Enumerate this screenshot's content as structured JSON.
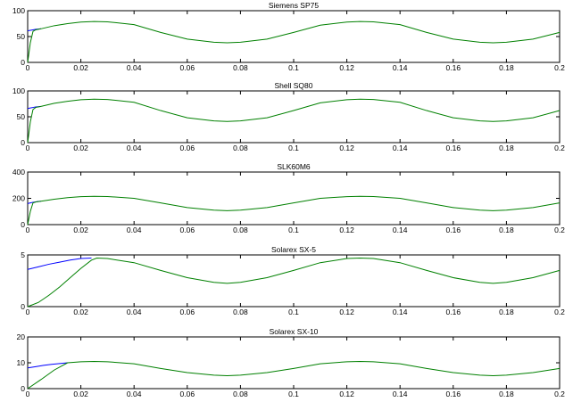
{
  "colors": {
    "series_1": "#0000ff",
    "series_2": "#008000",
    "axes": "#000000"
  },
  "chart_data": [
    {
      "type": "line",
      "title": "Siemens SP75",
      "xlim": [
        0,
        0.2
      ],
      "ylim": [
        0,
        100
      ],
      "x_ticks": [
        "0",
        "0.02",
        "0.04",
        "0.06",
        "0.08",
        "0.1",
        "0.12",
        "0.14",
        "0.16",
        "0.18",
        "0.2"
      ],
      "y_ticks": [
        "0",
        "50",
        "100"
      ],
      "grid": false,
      "series": [
        {
          "color": "#0000ff",
          "x": [
            0,
            0.001,
            0.002,
            0.003,
            0.004,
            0.005
          ],
          "y": [
            61,
            62,
            63,
            64,
            64.5,
            65
          ]
        },
        {
          "color": "#008000",
          "x": [
            0,
            0.001,
            0.002,
            0.003,
            0.005,
            0.01,
            0.015,
            0.02,
            0.025,
            0.03,
            0.04,
            0.05,
            0.06,
            0.07,
            0.075,
            0.08,
            0.09,
            0.1,
            0.11,
            0.12,
            0.125,
            0.13,
            0.14,
            0.15,
            0.16,
            0.17,
            0.175,
            0.18,
            0.19,
            0.2
          ],
          "y": [
            0,
            38,
            60,
            63,
            65,
            71,
            75,
            78,
            79,
            78.5,
            73,
            58,
            45,
            39,
            38,
            39,
            45,
            58,
            72,
            78,
            79,
            78.5,
            73,
            58,
            45,
            39,
            38,
            39,
            45,
            58
          ]
        }
      ]
    },
    {
      "type": "line",
      "title": "Shell SQ80",
      "xlim": [
        0,
        0.2
      ],
      "ylim": [
        0,
        100
      ],
      "x_ticks": [
        "0",
        "0.02",
        "0.04",
        "0.06",
        "0.08",
        "0.1",
        "0.12",
        "0.14",
        "0.16",
        "0.18",
        "0.2"
      ],
      "y_ticks": [
        "0",
        "50",
        "100"
      ],
      "grid": false,
      "series": [
        {
          "color": "#0000ff",
          "x": [
            0,
            0.001,
            0.002,
            0.003,
            0.004,
            0.005
          ],
          "y": [
            66,
            67,
            68,
            69,
            69.5,
            70
          ]
        },
        {
          "color": "#008000",
          "x": [
            0,
            0.001,
            0.002,
            0.003,
            0.005,
            0.01,
            0.015,
            0.02,
            0.025,
            0.03,
            0.04,
            0.05,
            0.06,
            0.07,
            0.075,
            0.08,
            0.09,
            0.1,
            0.11,
            0.12,
            0.125,
            0.13,
            0.14,
            0.15,
            0.16,
            0.17,
            0.175,
            0.18,
            0.19,
            0.2
          ],
          "y": [
            0,
            40,
            64,
            68,
            70,
            76,
            80,
            83,
            84,
            83.5,
            78,
            62,
            48,
            42,
            41,
            42,
            48,
            62,
            77,
            83,
            84,
            83.5,
            78,
            62,
            48,
            42,
            41,
            42,
            48,
            62
          ]
        }
      ]
    },
    {
      "type": "line",
      "title": "SLK60M6",
      "xlim": [
        0,
        0.2
      ],
      "ylim": [
        0,
        400
      ],
      "x_ticks": [
        "0",
        "0.02",
        "0.04",
        "0.06",
        "0.08",
        "0.1",
        "0.12",
        "0.14",
        "0.16",
        "0.18",
        "0.2"
      ],
      "y_ticks": [
        "0",
        "200",
        "400"
      ],
      "grid": false,
      "series": [
        {
          "color": "#0000ff",
          "x": [
            0,
            0.001,
            0.002,
            0.003,
            0.004,
            0.005
          ],
          "y": [
            160,
            165,
            170,
            173,
            176,
            178
          ]
        },
        {
          "color": "#008000",
          "x": [
            0,
            0.001,
            0.002,
            0.003,
            0.005,
            0.01,
            0.015,
            0.02,
            0.025,
            0.03,
            0.04,
            0.05,
            0.06,
            0.07,
            0.075,
            0.08,
            0.09,
            0.1,
            0.11,
            0.12,
            0.125,
            0.13,
            0.14,
            0.15,
            0.16,
            0.17,
            0.175,
            0.18,
            0.19,
            0.2
          ],
          "y": [
            0,
            100,
            165,
            172,
            178,
            193,
            205,
            213,
            215,
            214,
            200,
            165,
            130,
            110,
            106,
            110,
            130,
            165,
            200,
            213,
            215,
            214,
            200,
            165,
            130,
            110,
            106,
            110,
            130,
            165
          ]
        }
      ]
    },
    {
      "type": "line",
      "title": "Solarex SX-5",
      "xlim": [
        0,
        0.2
      ],
      "ylim": [
        0,
        5
      ],
      "x_ticks": [
        "0",
        "0.02",
        "0.04",
        "0.06",
        "0.08",
        "0.1",
        "0.12",
        "0.14",
        "0.16",
        "0.18",
        "0.2"
      ],
      "y_ticks": [
        "0",
        "5"
      ],
      "grid": false,
      "series": [
        {
          "color": "#0000ff",
          "x": [
            0,
            0.004,
            0.008,
            0.012,
            0.016,
            0.02,
            0.024
          ],
          "y": [
            3.6,
            3.85,
            4.1,
            4.3,
            4.5,
            4.65,
            4.7
          ]
        },
        {
          "color": "#008000",
          "x": [
            0,
            0.004,
            0.008,
            0.012,
            0.016,
            0.02,
            0.024,
            0.026,
            0.03,
            0.04,
            0.05,
            0.06,
            0.07,
            0.075,
            0.08,
            0.09,
            0.1,
            0.11,
            0.12,
            0.125,
            0.13,
            0.14,
            0.15,
            0.16,
            0.17,
            0.175,
            0.18,
            0.19,
            0.2
          ],
          "y": [
            0,
            0.4,
            1.1,
            1.9,
            2.8,
            3.7,
            4.5,
            4.7,
            4.65,
            4.25,
            3.5,
            2.8,
            2.35,
            2.25,
            2.35,
            2.8,
            3.5,
            4.25,
            4.65,
            4.7,
            4.65,
            4.25,
            3.5,
            2.8,
            2.35,
            2.25,
            2.35,
            2.8,
            3.5
          ]
        }
      ]
    },
    {
      "type": "line",
      "title": "Solarex SX-10",
      "xlim": [
        0,
        0.2
      ],
      "ylim": [
        0,
        20
      ],
      "x_ticks": [
        "0",
        "0.02",
        "0.04",
        "0.06",
        "0.08",
        "0.1",
        "0.12",
        "0.14",
        "0.16",
        "0.18",
        "0.2"
      ],
      "y_ticks": [
        "0",
        "10",
        "20"
      ],
      "grid": false,
      "series": [
        {
          "color": "#0000ff",
          "x": [
            0,
            0.003,
            0.006,
            0.009,
            0.012,
            0.015
          ],
          "y": [
            8,
            8.5,
            9,
            9.4,
            9.7,
            10
          ]
        },
        {
          "color": "#008000",
          "x": [
            0,
            0.005,
            0.01,
            0.015,
            0.02,
            0.025,
            0.03,
            0.04,
            0.05,
            0.06,
            0.07,
            0.075,
            0.08,
            0.09,
            0.1,
            0.11,
            0.12,
            0.125,
            0.13,
            0.14,
            0.15,
            0.16,
            0.17,
            0.175,
            0.18,
            0.19,
            0.2
          ],
          "y": [
            0,
            3.5,
            7.2,
            10,
            10.4,
            10.5,
            10.4,
            9.6,
            7.8,
            6.2,
            5.2,
            5,
            5.2,
            6.2,
            7.8,
            9.6,
            10.4,
            10.5,
            10.4,
            9.6,
            7.8,
            6.2,
            5.2,
            5,
            5.2,
            6.2,
            7.8
          ]
        }
      ]
    }
  ]
}
